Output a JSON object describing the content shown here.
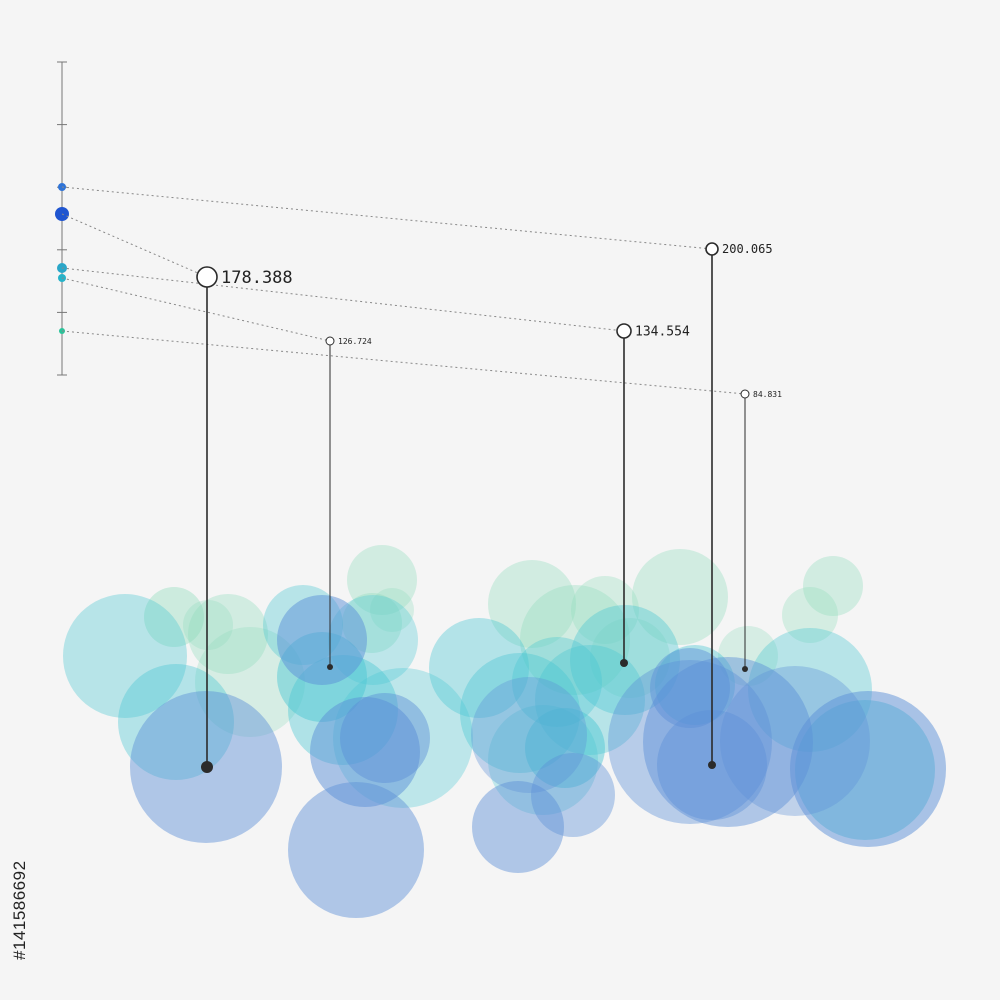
{
  "stock_id": "#141586692",
  "colors": {
    "stem": "#2b2b2b",
    "guide": "#888888",
    "axis": "#777777",
    "bubble_blue": "#5b8fd8",
    "bubble_teal": "#46c6d2",
    "bubble_mint": "#8fdcbc"
  },
  "chart_data": {
    "type": "scatter",
    "title": "",
    "axis_ticks": 6,
    "markers": [
      {
        "label": "178.388",
        "value": 178.388,
        "color": "#1f55d0"
      },
      {
        "label": "126.724",
        "value": 126.724,
        "color": "#26b3c9"
      },
      {
        "label": "134.554",
        "value": 134.554,
        "color": "#2aa6c8"
      },
      {
        "label": "200.065",
        "value": 200.065,
        "color": "#2f73d6"
      },
      {
        "label": "84.831",
        "value": 84.831,
        "color": "#29c39a"
      }
    ]
  }
}
